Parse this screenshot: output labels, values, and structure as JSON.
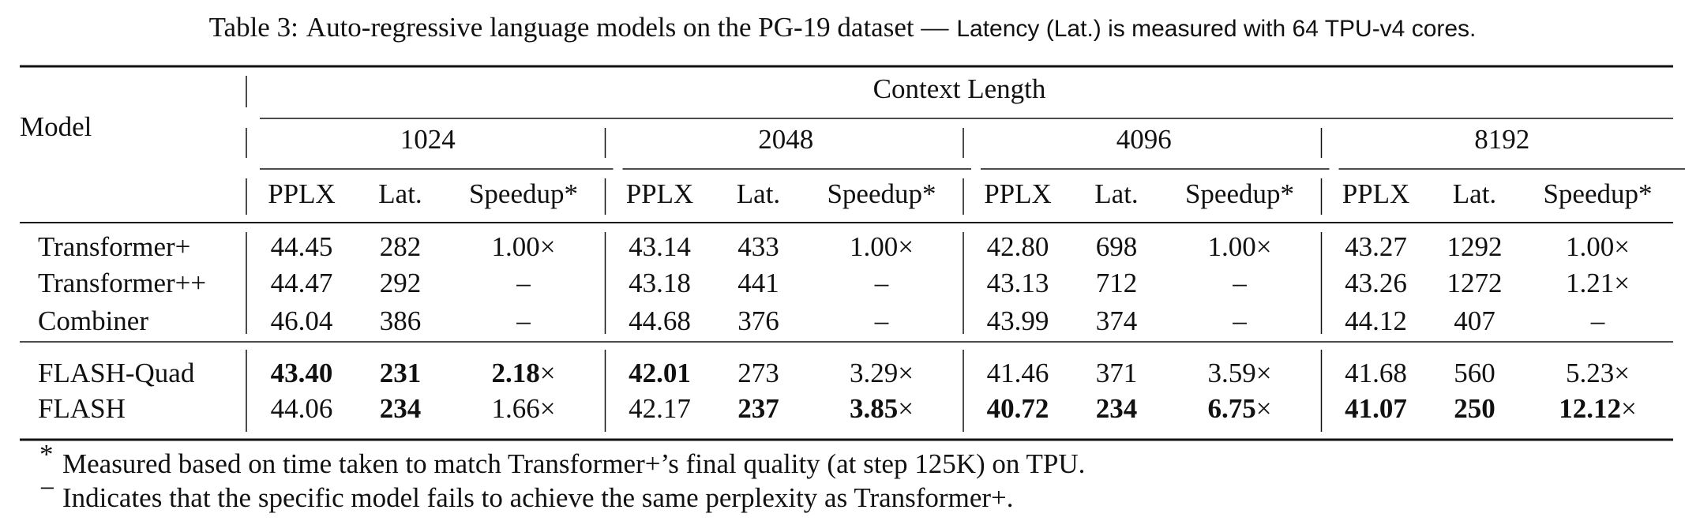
{
  "caption": {
    "label": "Table 3:",
    "main": "Auto-regressive language models on the PG-19 dataset —",
    "note": "Latency (Lat.) is measured with 64 TPU-v4 cores."
  },
  "table": {
    "model_header": "Model",
    "group_header": "Context Length",
    "contexts": [
      "1024",
      "2048",
      "4096",
      "8192"
    ],
    "metrics": [
      "PPLX",
      "Lat.",
      "Speedup*"
    ],
    "row_groups": [
      [
        {
          "model": "Transformer+",
          "cells": [
            "44.45",
            "282",
            "1.00×",
            "43.14",
            "433",
            "1.00×",
            "42.80",
            "698",
            "1.00×",
            "43.27",
            "1292",
            "1.00×"
          ],
          "bold": []
        },
        {
          "model": "Transformer++",
          "cells": [
            "44.47",
            "292",
            "–",
            "43.18",
            "441",
            "–",
            "43.13",
            "712",
            "–",
            "43.26",
            "1272",
            "1.21×"
          ],
          "bold": []
        },
        {
          "model": "Combiner",
          "cells": [
            "46.04",
            "386",
            "–",
            "44.68",
            "376",
            "–",
            "43.99",
            "374",
            "–",
            "44.12",
            "407",
            "–"
          ],
          "bold": []
        }
      ],
      [
        {
          "model": "FLASH-Quad",
          "cells": [
            "43.40",
            "231",
            "2.18×",
            "42.01",
            "273",
            "3.29×",
            "41.46",
            "371",
            "3.59×",
            "41.68",
            "560",
            "5.23×"
          ],
          "bold": [
            0,
            1,
            2,
            3
          ]
        },
        {
          "model": "FLASH",
          "cells": [
            "44.06",
            "234",
            "1.66×",
            "42.17",
            "237",
            "3.85×",
            "40.72",
            "234",
            "6.75×",
            "41.07",
            "250",
            "12.12×"
          ],
          "bold": [
            1,
            4,
            5,
            6,
            7,
            8,
            9,
            10,
            11
          ]
        }
      ]
    ]
  },
  "footnotes": [
    {
      "mark": "*",
      "text": "Measured based on time taken to match Transformer+’s final quality (at step 125K) on TPU."
    },
    {
      "mark": "−",
      "text": "Indicates that the specific model fails to achieve the same perplexity as Transformer+."
    }
  ]
}
